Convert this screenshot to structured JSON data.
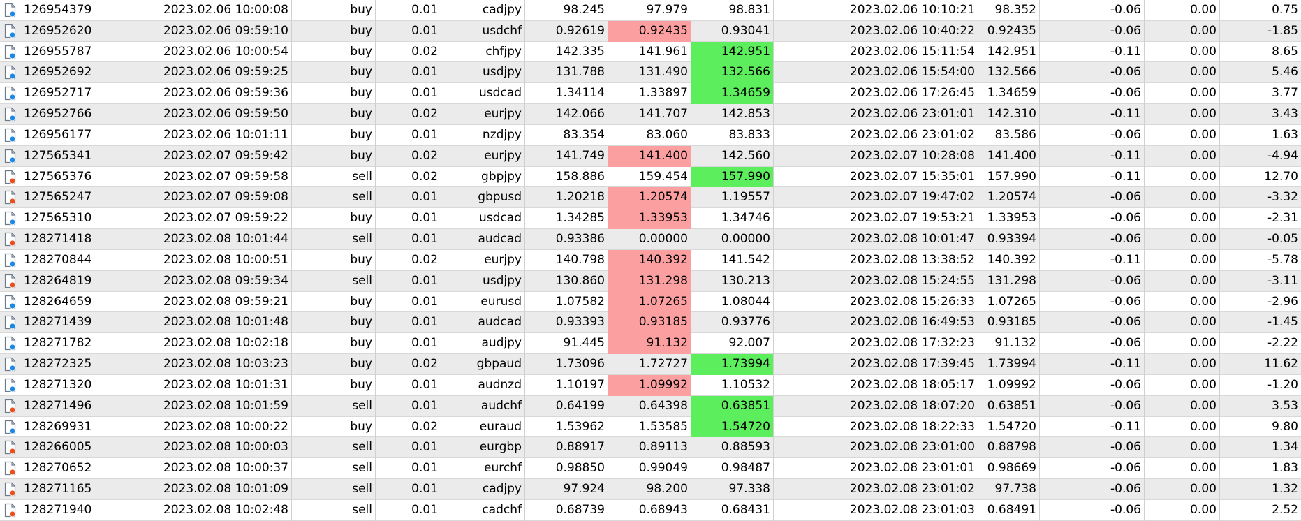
{
  "icons": {
    "buy": "order-buy-icon",
    "sell": "order-sell-icon"
  },
  "colors": {
    "buy_dot": "#1e88e5",
    "sell_dot": "#e8501f",
    "loss_highlight": "#fb9fa0",
    "profit_highlight": "#5cee5c",
    "alt_row": "#ebebeb"
  },
  "rows": [
    {
      "ticket": "126954379",
      "open_time": "2023.02.06 10:00:08",
      "type": "buy",
      "volume": "0.01",
      "symbol": "cadjpy",
      "open_price": "98.245",
      "sl": "97.979",
      "tp": "98.831",
      "close_time": "2023.02.06 10:10:21",
      "close_price": "98.352",
      "commission": "-0.06",
      "swap": "0.00",
      "profit": "0.75",
      "hl": ""
    },
    {
      "ticket": "126952620",
      "open_time": "2023.02.06 09:59:10",
      "type": "buy",
      "volume": "0.01",
      "symbol": "usdchf",
      "open_price": "0.92619",
      "sl": "0.92435",
      "tp": "0.93041",
      "close_time": "2023.02.06 10:40:22",
      "close_price": "0.92435",
      "commission": "-0.06",
      "swap": "0.00",
      "profit": "-1.85",
      "hl": "sl"
    },
    {
      "ticket": "126955787",
      "open_time": "2023.02.06 10:00:54",
      "type": "buy",
      "volume": "0.02",
      "symbol": "chfjpy",
      "open_price": "142.335",
      "sl": "141.961",
      "tp": "142.951",
      "close_time": "2023.02.06 15:11:54",
      "close_price": "142.951",
      "commission": "-0.11",
      "swap": "0.00",
      "profit": "8.65",
      "hl": "tp"
    },
    {
      "ticket": "126952692",
      "open_time": "2023.02.06 09:59:25",
      "type": "buy",
      "volume": "0.01",
      "symbol": "usdjpy",
      "open_price": "131.788",
      "sl": "131.490",
      "tp": "132.566",
      "close_time": "2023.02.06 15:54:00",
      "close_price": "132.566",
      "commission": "-0.06",
      "swap": "0.00",
      "profit": "5.46",
      "hl": "tp"
    },
    {
      "ticket": "126952717",
      "open_time": "2023.02.06 09:59:36",
      "type": "buy",
      "volume": "0.01",
      "symbol": "usdcad",
      "open_price": "1.34114",
      "sl": "1.33897",
      "tp": "1.34659",
      "close_time": "2023.02.06 17:26:45",
      "close_price": "1.34659",
      "commission": "-0.06",
      "swap": "0.00",
      "profit": "3.77",
      "hl": "tp"
    },
    {
      "ticket": "126952766",
      "open_time": "2023.02.06 09:59:50",
      "type": "buy",
      "volume": "0.02",
      "symbol": "eurjpy",
      "open_price": "142.066",
      "sl": "141.707",
      "tp": "142.853",
      "close_time": "2023.02.06 23:01:01",
      "close_price": "142.310",
      "commission": "-0.11",
      "swap": "0.00",
      "profit": "3.43",
      "hl": ""
    },
    {
      "ticket": "126956177",
      "open_time": "2023.02.06 10:01:11",
      "type": "buy",
      "volume": "0.01",
      "symbol": "nzdjpy",
      "open_price": "83.354",
      "sl": "83.060",
      "tp": "83.833",
      "close_time": "2023.02.06 23:01:02",
      "close_price": "83.586",
      "commission": "-0.06",
      "swap": "0.00",
      "profit": "1.63",
      "hl": ""
    },
    {
      "ticket": "127565341",
      "open_time": "2023.02.07 09:59:42",
      "type": "buy",
      "volume": "0.02",
      "symbol": "eurjpy",
      "open_price": "141.749",
      "sl": "141.400",
      "tp": "142.560",
      "close_time": "2023.02.07 10:28:08",
      "close_price": "141.400",
      "commission": "-0.11",
      "swap": "0.00",
      "profit": "-4.94",
      "hl": "sl"
    },
    {
      "ticket": "127565376",
      "open_time": "2023.02.07 09:59:58",
      "type": "sell",
      "volume": "0.02",
      "symbol": "gbpjpy",
      "open_price": "158.886",
      "sl": "159.454",
      "tp": "157.990",
      "close_time": "2023.02.07 15:35:01",
      "close_price": "157.990",
      "commission": "-0.11",
      "swap": "0.00",
      "profit": "12.70",
      "hl": "tp"
    },
    {
      "ticket": "127565247",
      "open_time": "2023.02.07 09:59:08",
      "type": "sell",
      "volume": "0.01",
      "symbol": "gbpusd",
      "open_price": "1.20218",
      "sl": "1.20574",
      "tp": "1.19557",
      "close_time": "2023.02.07 19:47:02",
      "close_price": "1.20574",
      "commission": "-0.06",
      "swap": "0.00",
      "profit": "-3.32",
      "hl": "sl"
    },
    {
      "ticket": "127565310",
      "open_time": "2023.02.07 09:59:22",
      "type": "buy",
      "volume": "0.01",
      "symbol": "usdcad",
      "open_price": "1.34285",
      "sl": "1.33953",
      "tp": "1.34746",
      "close_time": "2023.02.07 19:53:21",
      "close_price": "1.33953",
      "commission": "-0.06",
      "swap": "0.00",
      "profit": "-2.31",
      "hl": "sl"
    },
    {
      "ticket": "128271418",
      "open_time": "2023.02.08 10:01:44",
      "type": "sell",
      "volume": "0.01",
      "symbol": "audcad",
      "open_price": "0.93386",
      "sl": "0.00000",
      "tp": "0.00000",
      "close_time": "2023.02.08 10:01:47",
      "close_price": "0.93394",
      "commission": "-0.06",
      "swap": "0.00",
      "profit": "-0.05",
      "hl": ""
    },
    {
      "ticket": "128270844",
      "open_time": "2023.02.08 10:00:51",
      "type": "buy",
      "volume": "0.02",
      "symbol": "eurjpy",
      "open_price": "140.798",
      "sl": "140.392",
      "tp": "141.542",
      "close_time": "2023.02.08 13:38:52",
      "close_price": "140.392",
      "commission": "-0.11",
      "swap": "0.00",
      "profit": "-5.78",
      "hl": "sl"
    },
    {
      "ticket": "128264819",
      "open_time": "2023.02.08 09:59:34",
      "type": "sell",
      "volume": "0.01",
      "symbol": "usdjpy",
      "open_price": "130.860",
      "sl": "131.298",
      "tp": "130.213",
      "close_time": "2023.02.08 15:24:55",
      "close_price": "131.298",
      "commission": "-0.06",
      "swap": "0.00",
      "profit": "-3.11",
      "hl": "sl"
    },
    {
      "ticket": "128264659",
      "open_time": "2023.02.08 09:59:21",
      "type": "buy",
      "volume": "0.01",
      "symbol": "eurusd",
      "open_price": "1.07582",
      "sl": "1.07265",
      "tp": "1.08044",
      "close_time": "2023.02.08 15:26:33",
      "close_price": "1.07265",
      "commission": "-0.06",
      "swap": "0.00",
      "profit": "-2.96",
      "hl": "sl"
    },
    {
      "ticket": "128271439",
      "open_time": "2023.02.08 10:01:48",
      "type": "buy",
      "volume": "0.01",
      "symbol": "audcad",
      "open_price": "0.93393",
      "sl": "0.93185",
      "tp": "0.93776",
      "close_time": "2023.02.08 16:49:53",
      "close_price": "0.93185",
      "commission": "-0.06",
      "swap": "0.00",
      "profit": "-1.45",
      "hl": "sl"
    },
    {
      "ticket": "128271782",
      "open_time": "2023.02.08 10:02:18",
      "type": "buy",
      "volume": "0.01",
      "symbol": "audjpy",
      "open_price": "91.445",
      "sl": "91.132",
      "tp": "92.007",
      "close_time": "2023.02.08 17:32:23",
      "close_price": "91.132",
      "commission": "-0.06",
      "swap": "0.00",
      "profit": "-2.22",
      "hl": "sl"
    },
    {
      "ticket": "128272325",
      "open_time": "2023.02.08 10:03:23",
      "type": "buy",
      "volume": "0.02",
      "symbol": "gbpaud",
      "open_price": "1.73096",
      "sl": "1.72727",
      "tp": "1.73994",
      "close_time": "2023.02.08 17:39:45",
      "close_price": "1.73994",
      "commission": "-0.11",
      "swap": "0.00",
      "profit": "11.62",
      "hl": "tp"
    },
    {
      "ticket": "128271320",
      "open_time": "2023.02.08 10:01:31",
      "type": "buy",
      "volume": "0.01",
      "symbol": "audnzd",
      "open_price": "1.10197",
      "sl": "1.09992",
      "tp": "1.10532",
      "close_time": "2023.02.08 18:05:17",
      "close_price": "1.09992",
      "commission": "-0.06",
      "swap": "0.00",
      "profit": "-1.20",
      "hl": "sl"
    },
    {
      "ticket": "128271496",
      "open_time": "2023.02.08 10:01:59",
      "type": "sell",
      "volume": "0.01",
      "symbol": "audchf",
      "open_price": "0.64199",
      "sl": "0.64398",
      "tp": "0.63851",
      "close_time": "2023.02.08 18:07:20",
      "close_price": "0.63851",
      "commission": "-0.06",
      "swap": "0.00",
      "profit": "3.53",
      "hl": "tp"
    },
    {
      "ticket": "128269931",
      "open_time": "2023.02.08 10:00:22",
      "type": "buy",
      "volume": "0.02",
      "symbol": "euraud",
      "open_price": "1.53962",
      "sl": "1.53585",
      "tp": "1.54720",
      "close_time": "2023.02.08 18:22:33",
      "close_price": "1.54720",
      "commission": "-0.11",
      "swap": "0.00",
      "profit": "9.80",
      "hl": "tp"
    },
    {
      "ticket": "128266005",
      "open_time": "2023.02.08 10:00:03",
      "type": "sell",
      "volume": "0.01",
      "symbol": "eurgbp",
      "open_price": "0.88917",
      "sl": "0.89113",
      "tp": "0.88593",
      "close_time": "2023.02.08 23:01:00",
      "close_price": "0.88798",
      "commission": "-0.06",
      "swap": "0.00",
      "profit": "1.34",
      "hl": ""
    },
    {
      "ticket": "128270652",
      "open_time": "2023.02.08 10:00:37",
      "type": "sell",
      "volume": "0.01",
      "symbol": "eurchf",
      "open_price": "0.98850",
      "sl": "0.99049",
      "tp": "0.98487",
      "close_time": "2023.02.08 23:01:01",
      "close_price": "0.98669",
      "commission": "-0.06",
      "swap": "0.00",
      "profit": "1.83",
      "hl": ""
    },
    {
      "ticket": "128271165",
      "open_time": "2023.02.08 10:01:09",
      "type": "sell",
      "volume": "0.01",
      "symbol": "cadjpy",
      "open_price": "97.924",
      "sl": "98.200",
      "tp": "97.338",
      "close_time": "2023.02.08 23:01:02",
      "close_price": "97.738",
      "commission": "-0.06",
      "swap": "0.00",
      "profit": "1.32",
      "hl": ""
    },
    {
      "ticket": "128271940",
      "open_time": "2023.02.08 10:02:48",
      "type": "sell",
      "volume": "0.01",
      "symbol": "cadchf",
      "open_price": "0.68739",
      "sl": "0.68943",
      "tp": "0.68431",
      "close_time": "2023.02.08 23:01:03",
      "close_price": "0.68491",
      "commission": "-0.06",
      "swap": "0.00",
      "profit": "2.52",
      "hl": ""
    }
  ]
}
